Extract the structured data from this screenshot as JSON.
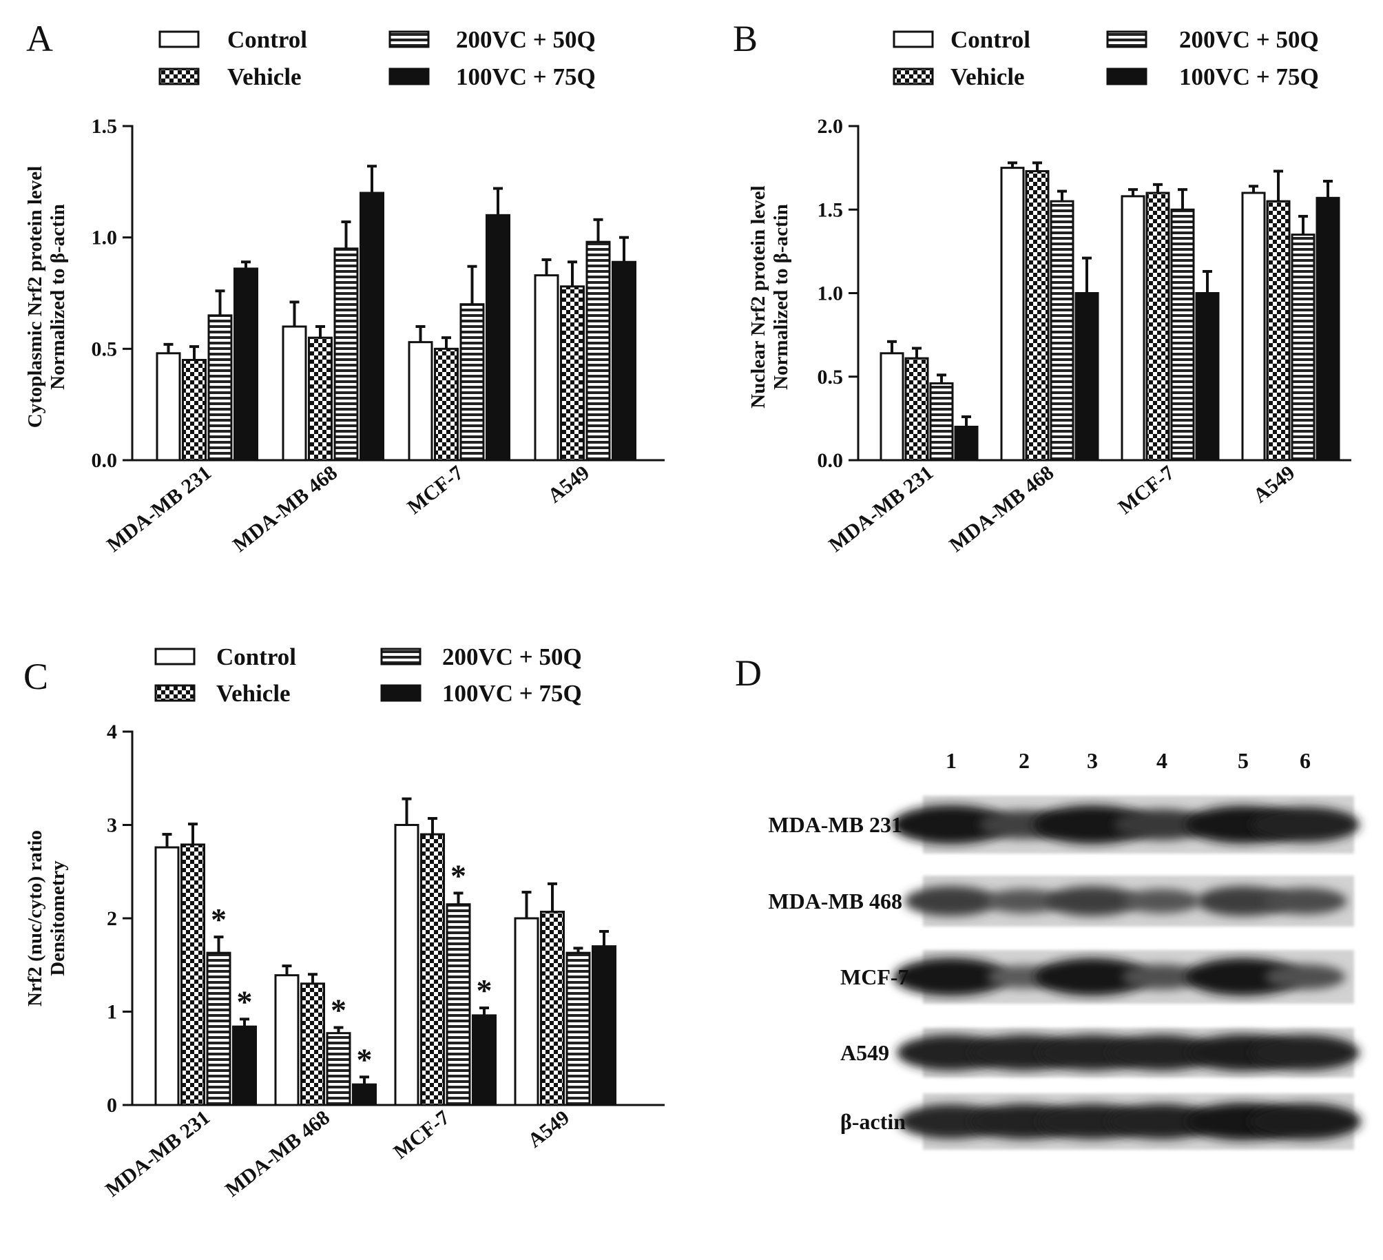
{
  "groups": [
    {
      "name": "Control",
      "pattern": "open"
    },
    {
      "name": "Vehicle",
      "pattern": "checker"
    },
    {
      "name": "200VC + 50Q",
      "pattern": "hstripe"
    },
    {
      "name": "100VC + 75Q",
      "pattern": "solid"
    }
  ],
  "colors": {
    "ink": "#111111",
    "background": "#ffffff",
    "blot_band": "#1a1a1a"
  },
  "chart_data": [
    {
      "panel": "A",
      "type": "bar",
      "categories": [
        "MDA-MB 231",
        "MDA-MB 468",
        "MCF-7",
        "A549"
      ],
      "ylabel": [
        "Cytoplasmic Nrf2 protein level",
        "Normalized to β-actin"
      ],
      "ylim": [
        0,
        1.5
      ],
      "yticks": [
        0.0,
        0.5,
        1.0,
        1.5
      ],
      "ytick_labels": [
        "0.0",
        "0.5",
        "1.0",
        "1.5"
      ],
      "legend": "top",
      "series": [
        {
          "name": "Control",
          "values": [
            0.48,
            0.6,
            0.53,
            0.83
          ],
          "errors": [
            0.04,
            0.11,
            0.07,
            0.07
          ]
        },
        {
          "name": "Vehicle",
          "values": [
            0.45,
            0.55,
            0.5,
            0.78
          ],
          "errors": [
            0.06,
            0.05,
            0.05,
            0.11
          ]
        },
        {
          "name": "200VC + 50Q",
          "values": [
            0.65,
            0.95,
            0.7,
            0.98
          ],
          "errors": [
            0.11,
            0.12,
            0.17,
            0.1
          ]
        },
        {
          "name": "100VC + 75Q",
          "values": [
            0.86,
            1.2,
            1.1,
            0.89
          ],
          "errors": [
            0.03,
            0.12,
            0.12,
            0.11
          ]
        }
      ],
      "annotations": []
    },
    {
      "panel": "B",
      "type": "bar",
      "categories": [
        "MDA-MB 231",
        "MDA-MB 468",
        "MCF-7",
        "A549"
      ],
      "ylabel": [
        "Nuclear Nrf2 protein level",
        "Normalized to β-actin"
      ],
      "ylim": [
        0,
        2.0
      ],
      "yticks": [
        0.0,
        0.5,
        1.0,
        1.5,
        2.0
      ],
      "ytick_labels": [
        "0.0",
        "0.5",
        "1.0",
        "1.5",
        "2.0"
      ],
      "legend": "top",
      "series": [
        {
          "name": "Control",
          "values": [
            0.64,
            1.75,
            1.58,
            1.6
          ],
          "errors": [
            0.07,
            0.03,
            0.04,
            0.04
          ]
        },
        {
          "name": "Vehicle",
          "values": [
            0.61,
            1.73,
            1.6,
            1.55
          ],
          "errors": [
            0.06,
            0.05,
            0.05,
            0.18
          ]
        },
        {
          "name": "200VC + 50Q",
          "values": [
            0.46,
            1.55,
            1.5,
            1.35
          ],
          "errors": [
            0.05,
            0.06,
            0.12,
            0.11
          ]
        },
        {
          "name": "100VC + 75Q",
          "values": [
            0.2,
            1.0,
            1.0,
            1.57
          ],
          "errors": [
            0.06,
            0.21,
            0.13,
            0.1
          ]
        }
      ],
      "annotations": []
    },
    {
      "panel": "C",
      "type": "bar",
      "categories": [
        "MDA-MB 231",
        "MDA-MB 468",
        "MCF-7",
        "A549"
      ],
      "ylabel": [
        "Nrf2 (nuc/cyto) ratio",
        "Densitometry"
      ],
      "ylim": [
        0,
        4
      ],
      "yticks": [
        0,
        1,
        2,
        3,
        4
      ],
      "ytick_labels": [
        "0",
        "1",
        "2",
        "3",
        "4"
      ],
      "legend": "top",
      "series": [
        {
          "name": "Control",
          "values": [
            2.76,
            1.39,
            3.0,
            2.0
          ],
          "errors": [
            0.14,
            0.1,
            0.28,
            0.28
          ]
        },
        {
          "name": "Vehicle",
          "values": [
            2.79,
            1.3,
            2.9,
            2.07
          ],
          "errors": [
            0.22,
            0.1,
            0.17,
            0.3
          ]
        },
        {
          "name": "200VC + 50Q",
          "values": [
            1.63,
            0.77,
            2.15,
            1.63
          ],
          "errors": [
            0.17,
            0.06,
            0.12,
            0.05
          ]
        },
        {
          "name": "100VC + 75Q",
          "values": [
            0.84,
            0.22,
            0.96,
            1.7
          ],
          "errors": [
            0.08,
            0.08,
            0.08,
            0.16
          ]
        }
      ],
      "annotations": [
        {
          "text": "*",
          "category": "MDA-MB 231",
          "series": "200VC + 50Q"
        },
        {
          "text": "*",
          "category": "MDA-MB 231",
          "series": "100VC + 75Q"
        },
        {
          "text": "*",
          "category": "MDA-MB 468",
          "series": "200VC + 50Q"
        },
        {
          "text": "*",
          "category": "MDA-MB 468",
          "series": "100VC + 75Q"
        },
        {
          "text": "*",
          "category": "MCF-7",
          "series": "200VC + 50Q"
        },
        {
          "text": "*",
          "category": "MCF-7",
          "series": "100VC + 75Q"
        }
      ]
    }
  ],
  "blot": {
    "panel": "D",
    "lanes": [
      "1",
      "2",
      "3",
      "4",
      "5",
      "6"
    ],
    "rows": [
      {
        "label": "MDA-MB 231",
        "intensity": [
          1.0,
          0.55,
          1.0,
          0.65,
          0.95,
          0.85
        ]
      },
      {
        "label": "MDA-MB 468",
        "intensity": [
          0.6,
          0.35,
          0.6,
          0.35,
          0.6,
          0.45
        ]
      },
      {
        "label": "MCF-7",
        "intensity": [
          0.95,
          0.3,
          0.95,
          0.4,
          0.95,
          0.4
        ]
      },
      {
        "label": "A549",
        "intensity": [
          0.85,
          0.85,
          0.85,
          0.85,
          0.9,
          0.85
        ]
      },
      {
        "label": "β-actin",
        "intensity": [
          0.8,
          0.85,
          0.85,
          0.85,
          0.95,
          0.9
        ]
      }
    ]
  }
}
